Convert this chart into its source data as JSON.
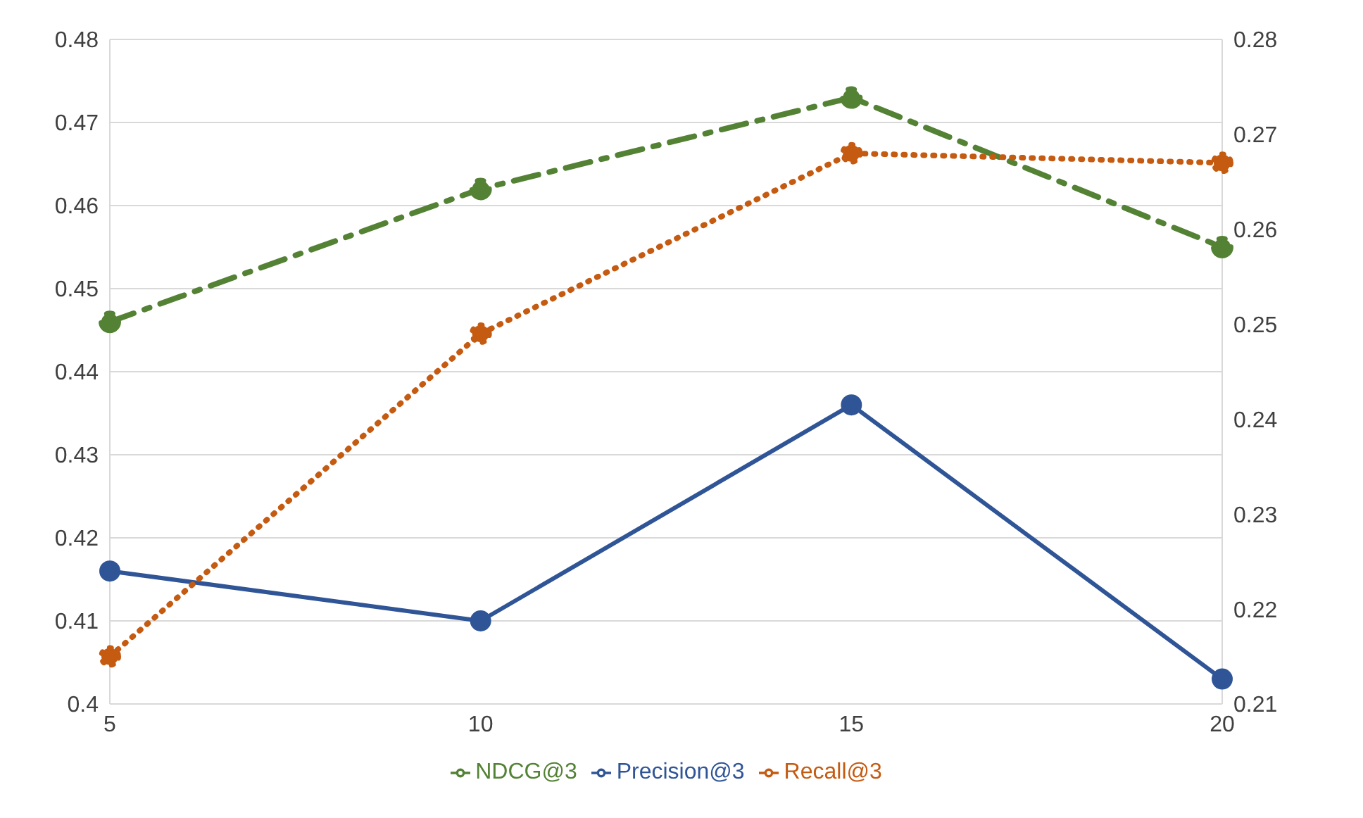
{
  "chart_data": {
    "type": "line",
    "categories": [
      "5",
      "10",
      "15",
      "20"
    ],
    "series": [
      {
        "name": "Precision@3",
        "color": "#2f5597",
        "values": [
          0.416,
          0.41,
          0.436,
          0.403
        ],
        "line_style": "solid",
        "axis": "y"
      },
      {
        "name": "NDCG@3",
        "color": "#548235",
        "values": [
          0.446,
          0.462,
          0.473,
          0.455
        ],
        "line_style": "dashed",
        "axis": "y"
      },
      {
        "name": "Recall@3",
        "color": "#c55a11",
        "values": [
          0.215,
          0.249,
          0.268,
          0.267
        ],
        "line_style": "dotted",
        "axis": "y2"
      }
    ],
    "ylim": [
      0.4,
      0.48
    ],
    "yticks": [
      0.4,
      0.41,
      0.42,
      0.43,
      0.44,
      0.45,
      0.46,
      0.47,
      0.48
    ],
    "y2lim": [
      0.21,
      0.28
    ],
    "y2ticks": [
      0.21,
      0.22,
      0.23,
      0.24,
      0.25,
      0.26,
      0.27,
      0.28
    ],
    "grid": "y",
    "legend": "bottom",
    "marker": "circle"
  }
}
